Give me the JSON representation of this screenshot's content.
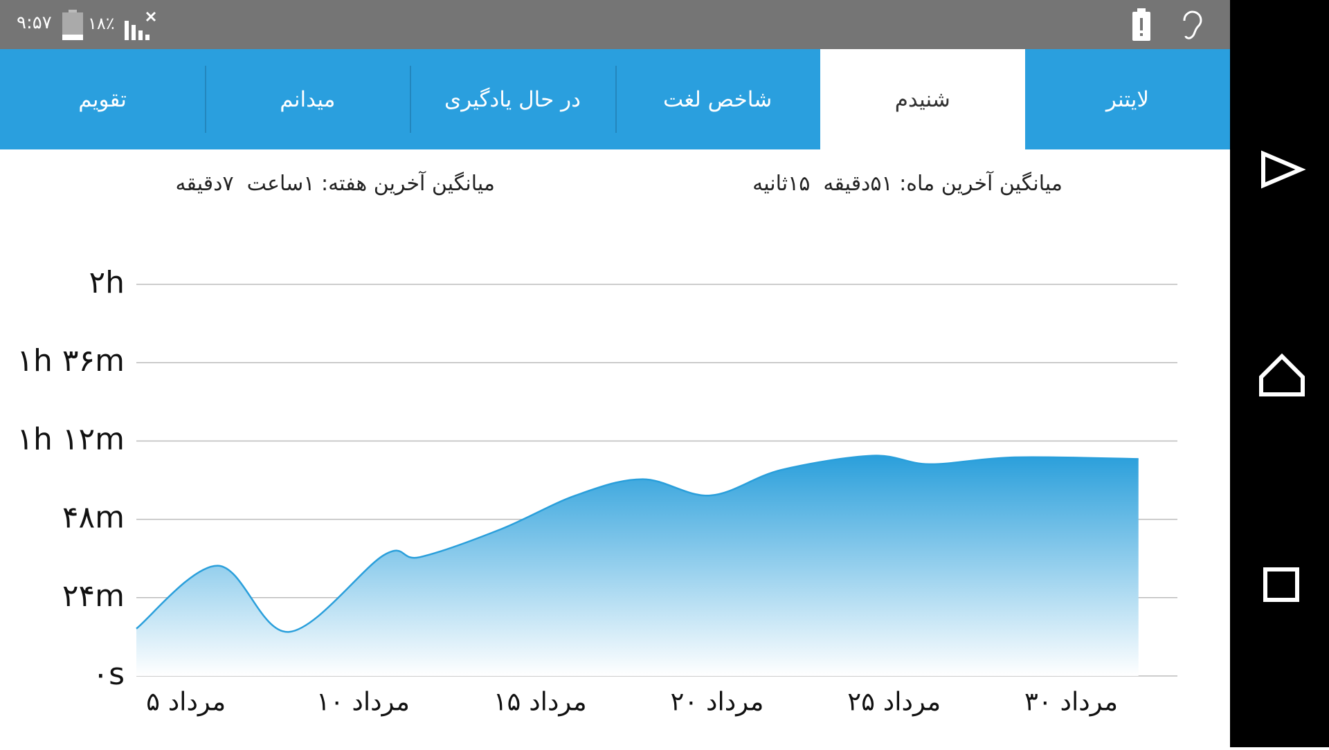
{
  "status_bar": {
    "time": "۹:۵۷",
    "battery": "۱۸٪"
  },
  "tabs": [
    "تقویم",
    "میدانم",
    "در حال یادگیری",
    "شاخص لغت",
    "شنیدم",
    "لایتنر"
  ],
  "selected_tab": 4,
  "summary": {
    "month": "میانگین آخرین ماه: ۵۱دقیقه  ۱۵ثانیه",
    "week": "میانگین آخرین هفته: ۱ساعت  ۷دقیقه"
  },
  "chart_data": {
    "type": "area",
    "color": "#2a9fdb",
    "grid": true,
    "x": [
      3.6,
      5.9,
      7.9,
      10.6,
      11.6,
      13.9,
      16.0,
      17.9,
      19.8,
      21.8,
      24.4,
      26.0,
      28.4,
      31.9
    ],
    "values": [
      14.5,
      33.8,
      13.5,
      37.1,
      36.4,
      45,
      55.3,
      60.3,
      55.3,
      63.1,
      67.5,
      64.9,
      67,
      66.5
    ],
    "xlim": [
      3.6,
      33
    ],
    "xticks": [
      {
        "value": 5,
        "label": "۵ مرداد"
      },
      {
        "value": 10,
        "label": "۱۰ مرداد"
      },
      {
        "value": 15,
        "label": "۱۵ مرداد"
      },
      {
        "value": 20,
        "label": "۲۰ مرداد"
      },
      {
        "value": 25,
        "label": "۲۵ مرداد"
      },
      {
        "value": 30,
        "label": "۳۰ مرداد"
      }
    ],
    "ylim": [
      0,
      120
    ],
    "yticks": [
      {
        "value": 0,
        "label": "۰s"
      },
      {
        "value": 24,
        "label": "۲۴m"
      },
      {
        "value": 48,
        "label": "۴۸m"
      },
      {
        "value": 72,
        "label": "۱h ۱۲m"
      },
      {
        "value": 96,
        "label": "۱h ۳۶m"
      },
      {
        "value": 120,
        "label": "۲h"
      }
    ]
  }
}
